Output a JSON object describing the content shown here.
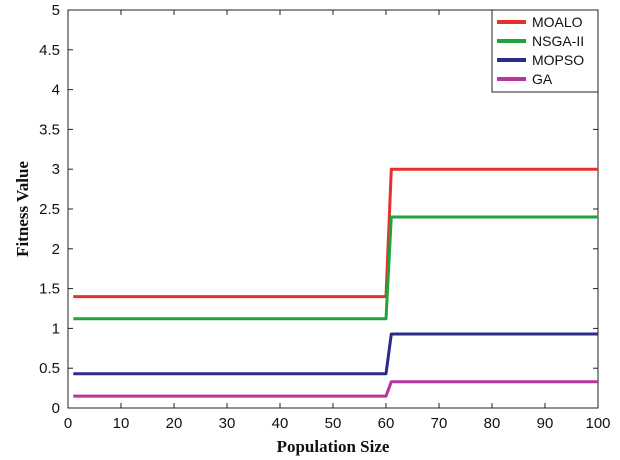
{
  "chart_data": {
    "type": "line",
    "xlabel": "Population Size",
    "ylabel": "Fitness Value",
    "xlim": [
      0,
      100
    ],
    "ylim": [
      0,
      5
    ],
    "xticks": [
      0,
      10,
      20,
      30,
      40,
      50,
      60,
      70,
      80,
      90,
      100
    ],
    "yticks": [
      0,
      0.5,
      1,
      1.5,
      2,
      2.5,
      3,
      3.5,
      4,
      4.5,
      5
    ],
    "xtick_labels": [
      "0",
      "10",
      "20",
      "30",
      "40",
      "50",
      "60",
      "70",
      "80",
      "90",
      "100"
    ],
    "ytick_labels": [
      "0",
      "0.5",
      "1",
      "1.5",
      "2",
      "2.5",
      "3",
      "3.5",
      "4",
      "4.5",
      "5"
    ],
    "legend_position": "top-right",
    "grid": false,
    "series": [
      {
        "name": "MOALO",
        "color": "#e8302a",
        "x": [
          1,
          60,
          61,
          100
        ],
        "y": [
          1.4,
          1.4,
          3.0,
          3.0
        ]
      },
      {
        "name": "NSGA-II",
        "color": "#1da53c",
        "x": [
          1,
          60,
          61,
          100
        ],
        "y": [
          1.12,
          1.12,
          2.4,
          2.4
        ]
      },
      {
        "name": "MOPSO",
        "color": "#2e2a8c",
        "x": [
          1,
          60,
          61,
          100
        ],
        "y": [
          0.43,
          0.43,
          0.93,
          0.93
        ]
      },
      {
        "name": "GA",
        "color": "#b5359c",
        "x": [
          1,
          60,
          61,
          100
        ],
        "y": [
          0.15,
          0.15,
          0.33,
          0.33
        ]
      }
    ]
  }
}
